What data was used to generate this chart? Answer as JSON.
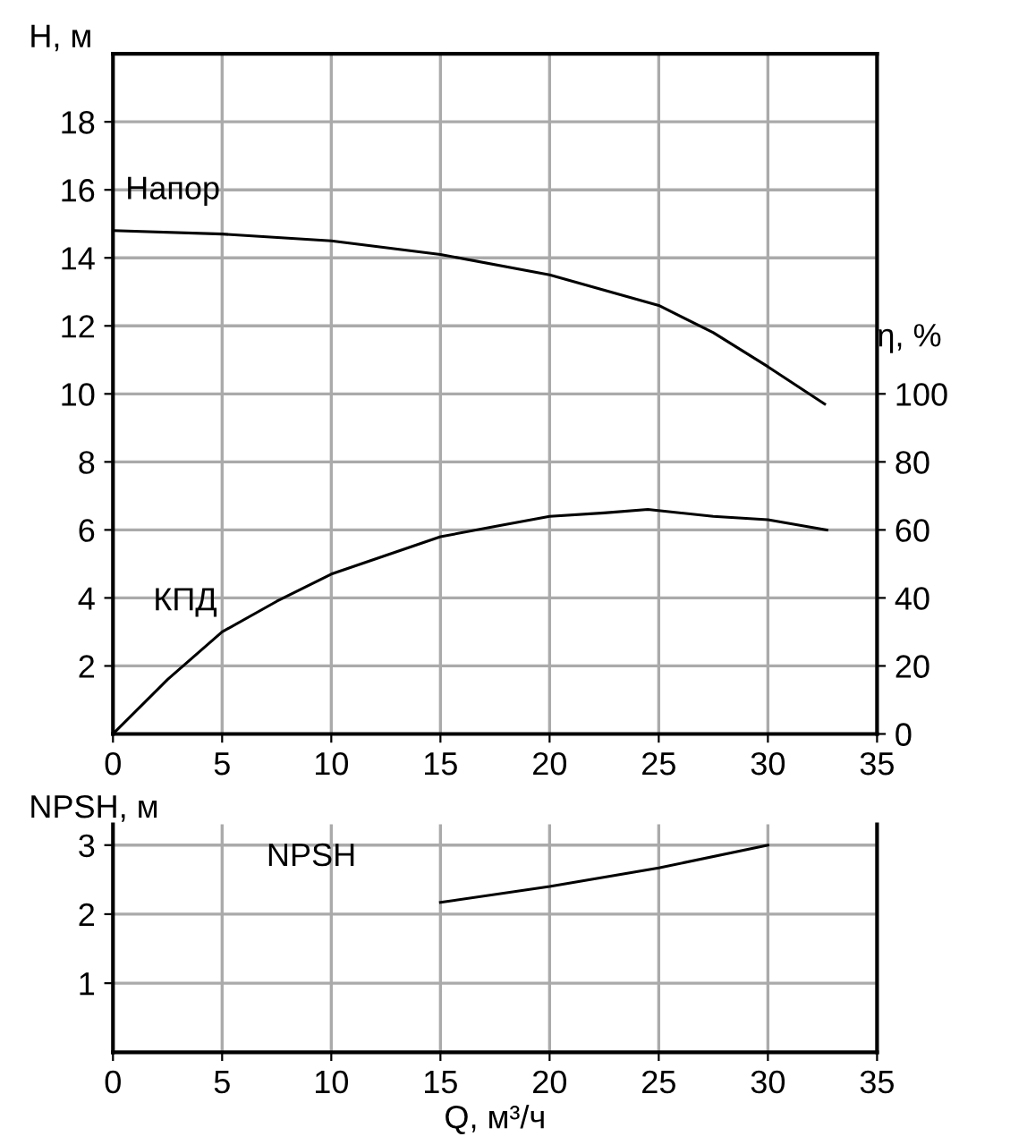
{
  "chart_data": [
    {
      "type": "line",
      "ylabel": "H, м",
      "y2label": "η, %",
      "xlim": [
        0,
        35
      ],
      "xticks": [
        0,
        5,
        10,
        15,
        20,
        25,
        30,
        35
      ],
      "ylim": [
        0,
        20
      ],
      "yticks": [
        2,
        4,
        6,
        8,
        10,
        12,
        14,
        16,
        18
      ],
      "y2lim": [
        0,
        200
      ],
      "y2ticks": [
        0,
        20,
        40,
        60,
        80,
        100
      ],
      "grid": true,
      "legend": false,
      "marker": "none",
      "line_style": "solid",
      "series": [
        {
          "name": "Напор",
          "color": "#000000",
          "x": [
            0,
            5,
            10,
            15,
            20,
            25,
            27.5,
            30,
            32.6
          ],
          "values": [
            14.8,
            14.7,
            14.5,
            14.1,
            13.5,
            12.6,
            11.8,
            10.8,
            9.7
          ]
        },
        {
          "name": "КПД",
          "color": "#000000",
          "axis": "y2",
          "x": [
            0,
            2.5,
            5,
            7.5,
            10,
            15,
            17.5,
            20,
            22.5,
            24.5,
            27.5,
            30,
            32.7
          ],
          "values": [
            0,
            16,
            30,
            39,
            47,
            58,
            61,
            64,
            65,
            66,
            64,
            63,
            60
          ]
        }
      ]
    },
    {
      "type": "line",
      "ylabel": "NPSH, м",
      "xlabel": "Q, м³/ч",
      "xlim": [
        0,
        35
      ],
      "xticks": [
        0,
        5,
        10,
        15,
        20,
        25,
        30,
        35
      ],
      "ylim": [
        0,
        3.3
      ],
      "yticks": [
        1,
        2,
        3
      ],
      "grid": true,
      "legend": false,
      "marker": "none",
      "line_style": "solid",
      "series": [
        {
          "name": "NPSH",
          "color": "#000000",
          "x": [
            15,
            20,
            25,
            30
          ],
          "values": [
            2.17,
            2.4,
            2.67,
            3.0
          ]
        }
      ]
    }
  ]
}
